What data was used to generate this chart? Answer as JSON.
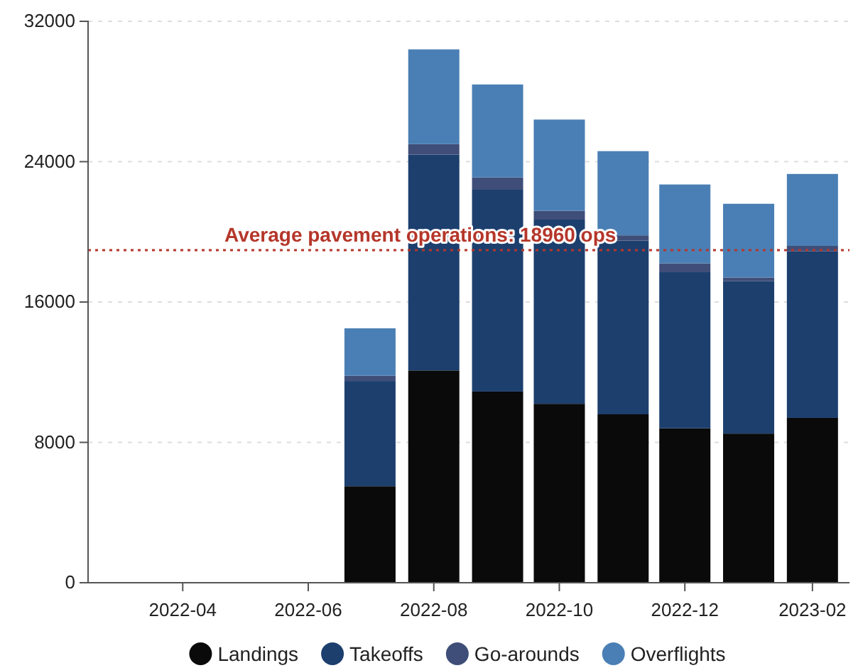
{
  "chart_data": {
    "type": "bar",
    "stacked": true,
    "x": [
      "2022-07",
      "2022-08",
      "2022-09",
      "2022-10",
      "2022-11",
      "2022-12",
      "2023-01",
      "2023-02"
    ],
    "xlim": [
      "2022-02-14",
      "2023-02-19"
    ],
    "xticks": [
      {
        "value": "2022-04",
        "label": "2022-04"
      },
      {
        "value": "2022-06",
        "label": "2022-06"
      },
      {
        "value": "2022-08",
        "label": "2022-08"
      },
      {
        "value": "2022-10",
        "label": "2022-10"
      },
      {
        "value": "2022-12",
        "label": "2022-12"
      },
      {
        "value": "2023-02",
        "label": "2023-02"
      }
    ],
    "ylim": [
      0,
      32000
    ],
    "yticks": [
      0,
      8000,
      16000,
      24000,
      32000
    ],
    "grid": "y",
    "legend": "bottom",
    "series": [
      {
        "name": "Landings",
        "color": "#0a0a0a",
        "values": [
          5500,
          12100,
          10900,
          10200,
          9600,
          8800,
          8500,
          9400
        ]
      },
      {
        "name": "Takeoffs",
        "color": "#1c3f6e",
        "values": [
          6000,
          12300,
          11500,
          10500,
          9900,
          8900,
          8700,
          9500
        ]
      },
      {
        "name": "Go-arounds",
        "color": "#3f4e78",
        "values": [
          300,
          600,
          700,
          500,
          300,
          500,
          200,
          300
        ]
      },
      {
        "name": "Overflights",
        "color": "#4a7fb5",
        "values": [
          2700,
          5400,
          5300,
          5200,
          4800,
          4500,
          4200,
          4100
        ]
      }
    ],
    "ref_lines": [
      {
        "axis": "y",
        "value": 18960,
        "label": "Average pavement operations: 18960 ops",
        "color": "#b5362a",
        "line_style": "dotted"
      }
    ]
  }
}
